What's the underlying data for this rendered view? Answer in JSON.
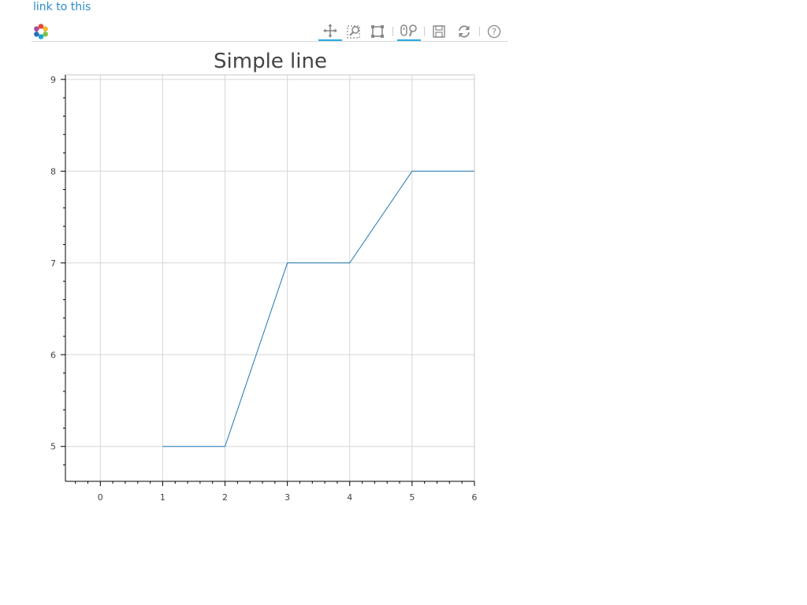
{
  "link": {
    "label": "link to this"
  },
  "toolbar": {
    "tools": [
      {
        "name": "pan",
        "icon": "pan-icon",
        "active": true
      },
      {
        "name": "box-zoom",
        "icon": "box-zoom-icon",
        "active": false
      },
      {
        "name": "box-select",
        "icon": "box-select-icon",
        "active": false
      },
      {
        "name": "wheel-zoom",
        "icon": "wheel-zoom-icon",
        "active": true
      },
      {
        "name": "save",
        "icon": "save-icon",
        "active": false
      },
      {
        "name": "reset",
        "icon": "reset-icon",
        "active": false
      },
      {
        "name": "help",
        "icon": "help-icon",
        "active": false
      }
    ],
    "accent_color": "#26aae1",
    "icon_color": "#888888"
  },
  "chart_data": {
    "type": "line",
    "title": "Simple line",
    "xlabel": "",
    "ylabel": "",
    "x": [
      1,
      2,
      3,
      4,
      5,
      6
    ],
    "series": [
      {
        "values": [
          5,
          5,
          7,
          7,
          8,
          8
        ],
        "color": "#1f77b4"
      }
    ],
    "xlim": [
      -0.56,
      6.0
    ],
    "ylim": [
      4.62,
      9.05
    ],
    "xticks": [
      0,
      1,
      2,
      3,
      4,
      5,
      6
    ],
    "yticks": [
      5,
      6,
      7,
      8,
      9
    ],
    "grid": true
  }
}
